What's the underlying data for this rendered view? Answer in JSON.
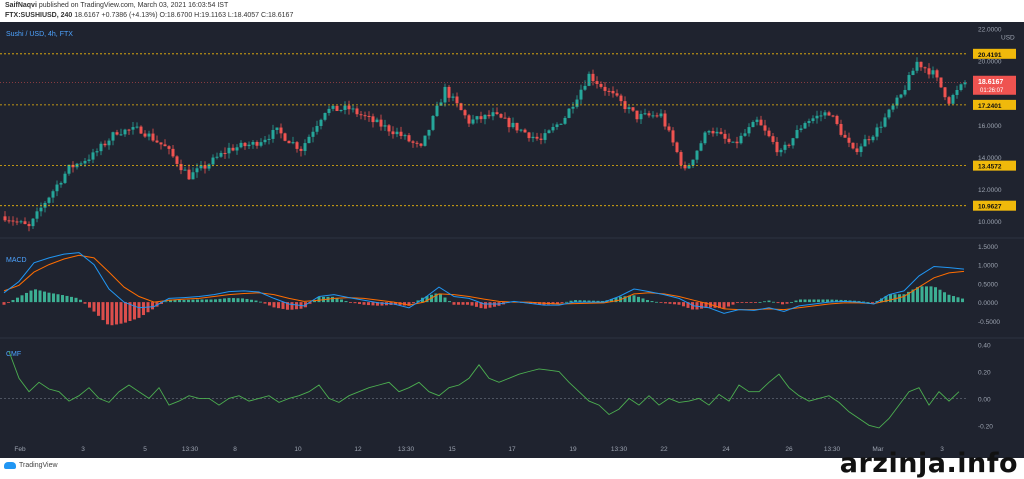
{
  "header": {
    "author": "SaifNaqvi",
    "published": "published on TradingView.com, March 03, 2021 16:03:54 IST",
    "symbol": "FTX:SUSHIUSD, 240",
    "last": "18.6167",
    "change": "+0.7386 (+4.13%)",
    "open_label": "O:",
    "open": "18.6700",
    "high_label": "H:",
    "high": "19.1163",
    "low_label": "L:",
    "low": "18.4057",
    "close_label": "C:",
    "close": "18.6167"
  },
  "colors": {
    "background": "#1f232f",
    "up": "#26a69a",
    "down": "#ef5350",
    "macd_line": "#2196f3",
    "signal_line": "#ff6d00",
    "cmf_line": "#4caf50",
    "level_line": "#f0b90b"
  },
  "chart_data": [
    {
      "type": "candlestick",
      "title": "Sushi / USD, 4h, FTX",
      "ylabel": "USD",
      "ylim": [
        9.2,
        22.4
      ],
      "price_ticks": [
        {
          "value": 22,
          "label": "22.0000"
        },
        {
          "value": 20,
          "label": "20.0000"
        },
        {
          "value": 16,
          "label": "16.0000"
        },
        {
          "value": 14,
          "label": "14.0000"
        },
        {
          "value": 12,
          "label": "12.0000"
        },
        {
          "value": 10,
          "label": "10.0000"
        }
      ],
      "levels": [
        {
          "value": 20.4191,
          "label": "20.4191"
        },
        {
          "value": 17.2401,
          "label": "17.2401"
        },
        {
          "value": 13.4572,
          "label": "13.4572"
        },
        {
          "value": 10.9627,
          "label": "10.9627"
        }
      ],
      "current": {
        "value": 18.6167,
        "label": "18.6167",
        "timer": "01:26:07"
      },
      "x_ticks": [
        "Feb",
        "3",
        "5",
        "13:30",
        "8",
        "10",
        "12",
        "13:30",
        "15",
        "17",
        "19",
        "13:30",
        "22",
        "24",
        "26",
        "13:30",
        "Mar",
        "3"
      ],
      "anchors": [
        [
          0,
          10.3
        ],
        [
          6,
          9.6
        ],
        [
          10,
          11.2
        ],
        [
          16,
          13.3
        ],
        [
          22,
          14.1
        ],
        [
          28,
          15.6
        ],
        [
          34,
          15.7
        ],
        [
          40,
          14.6
        ],
        [
          46,
          12.8
        ],
        [
          50,
          13.4
        ],
        [
          56,
          14.5
        ],
        [
          62,
          14.8
        ],
        [
          68,
          15.6
        ],
        [
          74,
          14.5
        ],
        [
          80,
          16.9
        ],
        [
          86,
          17.0
        ],
        [
          92,
          16.2
        ],
        [
          98,
          15.5
        ],
        [
          104,
          14.5
        ],
        [
          110,
          18.2
        ],
        [
          116,
          16.2
        ],
        [
          122,
          16.6
        ],
        [
          128,
          15.8
        ],
        [
          134,
          15.0
        ],
        [
          140,
          16.5
        ],
        [
          146,
          19.1
        ],
        [
          152,
          17.8
        ],
        [
          158,
          16.5
        ],
        [
          164,
          16.6
        ],
        [
          170,
          13.1
        ],
        [
          176,
          15.8
        ],
        [
          182,
          14.7
        ],
        [
          188,
          16.2
        ],
        [
          194,
          14.2
        ],
        [
          200,
          16.2
        ],
        [
          206,
          16.8
        ],
        [
          212,
          14.3
        ],
        [
          218,
          15.7
        ],
        [
          224,
          17.8
        ],
        [
          228,
          19.9
        ],
        [
          232,
          19.2
        ],
        [
          236,
          17.5
        ],
        [
          240,
          18.6167
        ]
      ],
      "n_candles": 241
    },
    {
      "type": "line",
      "title": "MACD",
      "ylim": [
        -0.85,
        1.55
      ],
      "ticks": [
        {
          "value": 1.5,
          "label": "1.5000"
        },
        {
          "value": 1.0,
          "label": "1.0000"
        },
        {
          "value": 0.5,
          "label": "0.5000"
        },
        {
          "value": 0.0,
          "label": "0.0000"
        },
        {
          "value": -0.5,
          "label": "-0.5000"
        }
      ],
      "macd": [
        [
          0,
          0.25
        ],
        [
          15,
          0.55
        ],
        [
          30,
          1.05
        ],
        [
          45,
          1.18
        ],
        [
          60,
          1.28
        ],
        [
          75,
          1.32
        ],
        [
          90,
          1.0
        ],
        [
          105,
          0.35
        ],
        [
          120,
          0.0
        ],
        [
          135,
          -0.15
        ],
        [
          150,
          -0.12
        ],
        [
          165,
          0.1
        ],
        [
          180,
          0.12
        ],
        [
          195,
          0.15
        ],
        [
          210,
          0.2
        ],
        [
          225,
          0.28
        ],
        [
          240,
          0.3
        ],
        [
          255,
          0.27
        ],
        [
          270,
          0.1
        ],
        [
          285,
          -0.05
        ],
        [
          300,
          -0.1
        ],
        [
          315,
          0.15
        ],
        [
          330,
          0.2
        ],
        [
          345,
          0.12
        ],
        [
          360,
          0.05
        ],
        [
          375,
          -0.02
        ],
        [
          390,
          -0.05
        ],
        [
          405,
          -0.15
        ],
        [
          420,
          0.1
        ],
        [
          435,
          0.4
        ],
        [
          450,
          0.15
        ],
        [
          465,
          0.1
        ],
        [
          480,
          -0.05
        ],
        [
          495,
          -0.05
        ],
        [
          510,
          0.02
        ],
        [
          525,
          -0.03
        ],
        [
          540,
          -0.08
        ],
        [
          555,
          -0.08
        ],
        [
          570,
          0.0
        ],
        [
          585,
          0.0
        ],
        [
          600,
          0.0
        ],
        [
          615,
          0.15
        ],
        [
          630,
          0.35
        ],
        [
          645,
          0.28
        ],
        [
          660,
          0.2
        ],
        [
          675,
          0.1
        ],
        [
          690,
          -0.1
        ],
        [
          705,
          -0.15
        ],
        [
          720,
          -0.3
        ],
        [
          735,
          -0.2
        ],
        [
          750,
          -0.22
        ],
        [
          765,
          -0.15
        ],
        [
          780,
          -0.25
        ],
        [
          795,
          -0.1
        ],
        [
          810,
          -0.05
        ],
        [
          825,
          0.0
        ],
        [
          840,
          0.02
        ],
        [
          855,
          0.0
        ],
        [
          870,
          -0.05
        ],
        [
          885,
          0.2
        ],
        [
          900,
          0.3
        ],
        [
          915,
          0.7
        ],
        [
          930,
          0.95
        ],
        [
          945,
          0.92
        ],
        [
          960,
          0.88
        ]
      ],
      "signal": [
        [
          0,
          0.3
        ],
        [
          15,
          0.45
        ],
        [
          30,
          0.8
        ],
        [
          45,
          1.0
        ],
        [
          60,
          1.15
        ],
        [
          75,
          1.25
        ],
        [
          90,
          1.18
        ],
        [
          105,
          0.8
        ],
        [
          120,
          0.4
        ],
        [
          135,
          0.15
        ],
        [
          150,
          0.0
        ],
        [
          165,
          0.05
        ],
        [
          180,
          0.08
        ],
        [
          195,
          0.1
        ],
        [
          210,
          0.15
        ],
        [
          225,
          0.2
        ],
        [
          240,
          0.23
        ],
        [
          255,
          0.25
        ],
        [
          270,
          0.2
        ],
        [
          285,
          0.1
        ],
        [
          300,
          0.02
        ],
        [
          315,
          0.05
        ],
        [
          330,
          0.1
        ],
        [
          345,
          0.12
        ],
        [
          360,
          0.1
        ],
        [
          375,
          0.05
        ],
        [
          390,
          0.0
        ],
        [
          405,
          -0.08
        ],
        [
          420,
          0.0
        ],
        [
          435,
          0.22
        ],
        [
          450,
          0.2
        ],
        [
          465,
          0.15
        ],
        [
          480,
          0.08
        ],
        [
          495,
          0.02
        ],
        [
          510,
          0.0
        ],
        [
          525,
          0.0
        ],
        [
          540,
          -0.03
        ],
        [
          555,
          -0.05
        ],
        [
          570,
          -0.04
        ],
        [
          585,
          -0.03
        ],
        [
          600,
          -0.02
        ],
        [
          615,
          0.05
        ],
        [
          630,
          0.22
        ],
        [
          645,
          0.25
        ],
        [
          660,
          0.22
        ],
        [
          675,
          0.15
        ],
        [
          690,
          0.05
        ],
        [
          705,
          -0.05
        ],
        [
          720,
          -0.18
        ],
        [
          735,
          -0.2
        ],
        [
          750,
          -0.2
        ],
        [
          765,
          -0.18
        ],
        [
          780,
          -0.2
        ],
        [
          795,
          -0.15
        ],
        [
          810,
          -0.1
        ],
        [
          825,
          -0.05
        ],
        [
          840,
          -0.02
        ],
        [
          855,
          -0.02
        ],
        [
          870,
          -0.04
        ],
        [
          885,
          0.05
        ],
        [
          900,
          0.15
        ],
        [
          915,
          0.4
        ],
        [
          930,
          0.65
        ],
        [
          945,
          0.78
        ],
        [
          960,
          0.82
        ]
      ]
    },
    {
      "type": "line",
      "title": "CMF",
      "ylim": [
        -0.28,
        0.42
      ],
      "ticks": [
        {
          "value": 0.4,
          "label": "0.40"
        },
        {
          "value": 0.2,
          "label": "0.20"
        },
        {
          "value": 0.0,
          "label": "0.00"
        },
        {
          "value": -0.2,
          "label": "-0.20"
        }
      ],
      "zero_line": 0,
      "cmf": [
        [
          5,
          0.35
        ],
        [
          15,
          0.15
        ],
        [
          25,
          0.05
        ],
        [
          35,
          0.12
        ],
        [
          45,
          0.07
        ],
        [
          55,
          0.05
        ],
        [
          65,
          -0.02
        ],
        [
          75,
          0.02
        ],
        [
          85,
          0.08
        ],
        [
          95,
          0.0
        ],
        [
          105,
          -0.03
        ],
        [
          115,
          0.05
        ],
        [
          125,
          0.1
        ],
        [
          135,
          0.05
        ],
        [
          145,
          0.0
        ],
        [
          155,
          0.08
        ],
        [
          165,
          -0.05
        ],
        [
          175,
          -0.02
        ],
        [
          185,
          0.02
        ],
        [
          195,
          0.0
        ],
        [
          205,
          0.0
        ],
        [
          215,
          -0.05
        ],
        [
          225,
          0.0
        ],
        [
          235,
          0.02
        ],
        [
          245,
          -0.02
        ],
        [
          255,
          0.0
        ],
        [
          265,
          0.02
        ],
        [
          275,
          -0.03
        ],
        [
          285,
          0.0
        ],
        [
          295,
          0.02
        ],
        [
          305,
          0.05
        ],
        [
          315,
          0.1
        ],
        [
          325,
          0.0
        ],
        [
          335,
          -0.03
        ],
        [
          345,
          0.02
        ],
        [
          355,
          0.05
        ],
        [
          365,
          0.08
        ],
        [
          375,
          0.1
        ],
        [
          385,
          0.12
        ],
        [
          395,
          0.05
        ],
        [
          405,
          0.08
        ],
        [
          415,
          0.12
        ],
        [
          425,
          0.05
        ],
        [
          435,
          0.02
        ],
        [
          445,
          0.08
        ],
        [
          455,
          0.1
        ],
        [
          465,
          0.15
        ],
        [
          475,
          0.25
        ],
        [
          485,
          0.15
        ],
        [
          495,
          0.12
        ],
        [
          505,
          0.15
        ],
        [
          515,
          0.18
        ],
        [
          525,
          0.2
        ],
        [
          535,
          0.22
        ],
        [
          545,
          0.21
        ],
        [
          555,
          0.2
        ],
        [
          565,
          0.12
        ],
        [
          575,
          0.05
        ],
        [
          585,
          -0.02
        ],
        [
          595,
          -0.05
        ],
        [
          605,
          -0.12
        ],
        [
          615,
          -0.08
        ],
        [
          625,
          0.0
        ],
        [
          635,
          -0.05
        ],
        [
          645,
          0.02
        ],
        [
          655,
          -0.05
        ],
        [
          665,
          0.0
        ],
        [
          675,
          -0.03
        ],
        [
          685,
          -0.02
        ],
        [
          695,
          0.0
        ],
        [
          705,
          -0.05
        ],
        [
          715,
          0.03
        ],
        [
          725,
          -0.02
        ],
        [
          735,
          0.1
        ],
        [
          745,
          0.05
        ],
        [
          755,
          0.05
        ],
        [
          765,
          0.12
        ],
        [
          775,
          0.18
        ],
        [
          785,
          0.08
        ],
        [
          795,
          0.02
        ],
        [
          805,
          -0.02
        ],
        [
          815,
          0.0
        ],
        [
          825,
          0.02
        ],
        [
          835,
          -0.03
        ],
        [
          845,
          -0.1
        ],
        [
          855,
          -0.15
        ],
        [
          865,
          -0.2
        ],
        [
          875,
          -0.22
        ],
        [
          885,
          -0.15
        ],
        [
          895,
          -0.05
        ],
        [
          905,
          0.05
        ],
        [
          915,
          0.08
        ],
        [
          925,
          -0.05
        ],
        [
          935,
          0.05
        ],
        [
          945,
          -0.02
        ],
        [
          955,
          0.05
        ]
      ]
    }
  ],
  "footer": {
    "tv_logo_text": "TradingView",
    "watermark": "arzinja.info"
  }
}
